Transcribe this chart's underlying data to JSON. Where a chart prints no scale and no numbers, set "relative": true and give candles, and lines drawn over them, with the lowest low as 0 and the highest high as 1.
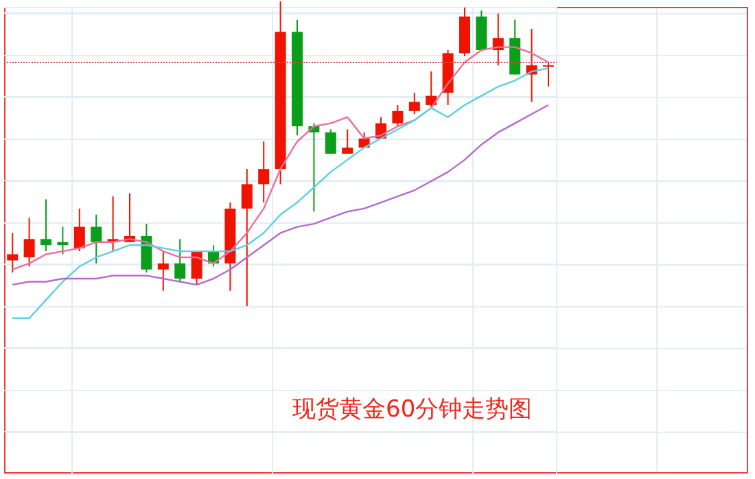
{
  "chart_data": {
    "type": "candlestick",
    "relative": true,
    "title": "现货黄金60分钟走势图",
    "grid": true,
    "marker": "none",
    "categories": [
      null,
      null,
      null,
      null,
      null,
      null,
      null,
      null,
      null,
      null,
      null,
      null,
      null,
      null,
      null,
      null,
      null,
      null,
      null,
      null,
      null,
      null,
      null,
      null,
      null,
      null,
      null,
      null,
      null,
      null,
      null,
      null,
      null
    ],
    "colors": [
      "#f01400",
      "#f01400",
      "#0a9e1a",
      "#0a9e1a",
      "#f01400",
      "#0a9e1a",
      "#f01400",
      "#f01400",
      "#0a9e1a",
      "#f01400",
      "#0a9e1a",
      "#f01400",
      "#0a9e1a",
      "#f01400",
      "#f01400",
      "#f01400",
      "#f01400",
      "#0a9e1a",
      "#0a9e1a",
      "#0a9e1a",
      "#f01400",
      "#f01400",
      "#f01400",
      "#f01400",
      "#f01400",
      "#f01400",
      "#f01400",
      "#f01400",
      "#0a9e1a",
      "#f01400",
      "#0a9e1a",
      "#f01400",
      "#f01400"
    ],
    "ohlc": [
      [
        0.15,
        0.24,
        0.11,
        0.17
      ],
      [
        0.16,
        0.29,
        0.13,
        0.22
      ],
      [
        0.22,
        0.35,
        0.18,
        0.2
      ],
      [
        0.21,
        0.26,
        0.17,
        0.2
      ],
      [
        0.19,
        0.32,
        0.18,
        0.26
      ],
      [
        0.26,
        0.3,
        0.14,
        0.21
      ],
      [
        0.21,
        0.36,
        0.18,
        0.22
      ],
      [
        0.21,
        0.37,
        0.21,
        0.23
      ],
      [
        0.23,
        0.27,
        0.11,
        0.12
      ],
      [
        0.12,
        0.18,
        0.05,
        0.14
      ],
      [
        0.14,
        0.22,
        0.08,
        0.09
      ],
      [
        0.09,
        0.18,
        0.07,
        0.18
      ],
      [
        0.18,
        0.2,
        0.13,
        0.14
      ],
      [
        0.14,
        0.34,
        0.05,
        0.32
      ],
      [
        0.32,
        0.45,
        0,
        0.4
      ],
      [
        0.4,
        0.54,
        0.34,
        0.45
      ],
      [
        0.45,
        1,
        0.4,
        0.9
      ],
      [
        0.9,
        0.94,
        0.56,
        0.59
      ],
      [
        0.59,
        0.6,
        0.31,
        0.57
      ],
      [
        0.57,
        0.58,
        0.5,
        0.5
      ],
      [
        0.5,
        0.58,
        0.5,
        0.52
      ],
      [
        0.52,
        0.57,
        0.52,
        0.55
      ],
      [
        0.55,
        0.62,
        0.55,
        0.6
      ],
      [
        0.6,
        0.66,
        0.59,
        0.64
      ],
      [
        0.64,
        0.7,
        0.63,
        0.67
      ],
      [
        0.66,
        0.77,
        0.65,
        0.69
      ],
      [
        0.7,
        0.84,
        0.66,
        0.83
      ],
      [
        0.83,
        0.98,
        0.82,
        0.95
      ],
      [
        0.95,
        0.97,
        0.84,
        0.84
      ],
      [
        0.84,
        0.96,
        0.79,
        0.88
      ],
      [
        0.88,
        0.94,
        0.76,
        0.76
      ],
      [
        0.76,
        0.91,
        0.67,
        0.79
      ],
      [
        0.79,
        0.8,
        0.72,
        0.79
      ]
    ],
    "series": [
      {
        "type": "line",
        "color": "#ec6f9a",
        "values": [
          0.12,
          0.14,
          0.17,
          0.18,
          0.19,
          0.21,
          0.21,
          0.22,
          0.21,
          0.18,
          0.16,
          0.16,
          0.14,
          0.18,
          0.24,
          0.32,
          0.45,
          0.54,
          0.59,
          0.6,
          0.62,
          0.55,
          0.56,
          0.59,
          0.61,
          0.65,
          0.73,
          0.8,
          0.84,
          0.85,
          0.85,
          0.83,
          0.8
        ]
      },
      {
        "type": "line",
        "color": "#5ccfe0",
        "values": [
          -0.04,
          -0.04,
          0.02,
          0.08,
          0.13,
          0.16,
          0.18,
          0.2,
          0.2,
          0.19,
          0.18,
          0.18,
          0.18,
          0.18,
          0.2,
          0.24,
          0.3,
          0.34,
          0.39,
          0.44,
          0.48,
          0.52,
          0.55,
          0.58,
          0.61,
          0.65,
          0.62,
          0.66,
          0.69,
          0.72,
          0.74,
          0.77,
          0.78
        ]
      },
      {
        "type": "line",
        "color": "#b46acc",
        "values": [
          0.07,
          0.08,
          0.08,
          0.09,
          0.09,
          0.09,
          0.1,
          0.1,
          0.1,
          0.09,
          0.08,
          0.07,
          0.09,
          0.12,
          0.16,
          0.2,
          0.24,
          0.26,
          0.27,
          0.29,
          0.31,
          0.32,
          0.34,
          0.36,
          0.38,
          0.41,
          0.44,
          0.48,
          0.53,
          0.57,
          0.6,
          0.63,
          0.66
        ]
      }
    ],
    "ref_lines": [
      {
        "axis": "y",
        "value": 0.8,
        "color": "#f03c3c",
        "line_style": "dotted"
      }
    ]
  }
}
